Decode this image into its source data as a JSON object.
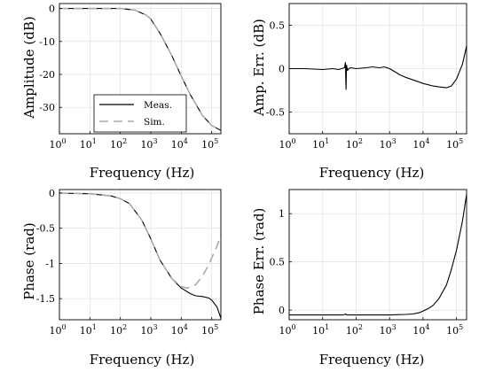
{
  "chart_data": [
    {
      "id": "amp",
      "type": "line",
      "xlabel": "Frequency (Hz)",
      "ylabel": "Amplitude (dB)",
      "xscale": "log",
      "xlim": [
        1,
        200000
      ],
      "ylim": [
        -38,
        1.5
      ],
      "xticks": [
        "10^0",
        "10^1",
        "10^2",
        "10^3",
        "10^4",
        "10^5"
      ],
      "yticks": [
        0,
        -10,
        -20,
        -30
      ],
      "grid": true,
      "legend": {
        "placement": "bottom-left",
        "entries": [
          "Meas.",
          "Sim."
        ]
      },
      "series": [
        {
          "name": "Meas.",
          "style": "solid",
          "color": "#000000",
          "x": [
            1,
            10,
            100,
            300,
            700,
            1000,
            2000,
            3000,
            5000,
            10000,
            20000,
            50000,
            100000,
            200000
          ],
          "y": [
            0,
            0,
            0,
            -0.5,
            -2,
            -3.2,
            -7.5,
            -10.5,
            -14.5,
            -20.5,
            -26.2,
            -32.5,
            -35.5,
            -37
          ]
        },
        {
          "name": "Sim.",
          "style": "dashed",
          "color": "#aaaaaa",
          "x": [
            1,
            10,
            100,
            300,
            700,
            1000,
            2000,
            3000,
            5000,
            10000,
            20000,
            50000,
            100000,
            200000
          ],
          "y": [
            0,
            0,
            0,
            -0.5,
            -2,
            -3.2,
            -7.5,
            -10.5,
            -14.5,
            -20.5,
            -26.2,
            -32.5,
            -35.5,
            -37
          ]
        }
      ]
    },
    {
      "id": "amperr",
      "type": "line",
      "xlabel": "Frequency (Hz)",
      "ylabel": "Amp. Err. (dB)",
      "xscale": "log",
      "xlim": [
        1,
        200000
      ],
      "ylim": [
        -0.75,
        0.75
      ],
      "xticks": [
        "10^0",
        "10^1",
        "10^2",
        "10^3",
        "10^4",
        "10^5"
      ],
      "yticks": [
        0.5,
        0,
        -0.5
      ],
      "grid": true,
      "series": [
        {
          "name": "",
          "style": "solid",
          "color": "#000000",
          "x": [
            1,
            3,
            10,
            20,
            30,
            45,
            48,
            50,
            52,
            55,
            60,
            70,
            100,
            200,
            300,
            500,
            700,
            1000,
            1500,
            2000,
            3000,
            5000,
            10000,
            20000,
            30000,
            50000,
            70000,
            100000,
            150000,
            200000
          ],
          "y": [
            0,
            0,
            -0.01,
            0,
            -0.01,
            0.01,
            0.07,
            -0.24,
            0.04,
            -0.02,
            0,
            0.01,
            0,
            0.01,
            0.02,
            0.01,
            0.02,
            0,
            -0.04,
            -0.07,
            -0.1,
            -0.13,
            -0.17,
            -0.2,
            -0.21,
            -0.22,
            -0.2,
            -0.12,
            0.05,
            0.26
          ]
        }
      ]
    },
    {
      "id": "phase",
      "type": "line",
      "xlabel": "Frequency (Hz)",
      "ylabel": "Phase (rad)",
      "xscale": "log",
      "xlim": [
        1,
        200000
      ],
      "ylim": [
        -1.8,
        0.05
      ],
      "xticks": [
        "10^0",
        "10^1",
        "10^2",
        "10^3",
        "10^4",
        "10^5"
      ],
      "yticks": [
        0,
        -0.5,
        -1,
        -1.5
      ],
      "grid": true,
      "series": [
        {
          "name": "Meas.",
          "style": "solid",
          "color": "#000000",
          "x": [
            1,
            10,
            50,
            100,
            200,
            500,
            1000,
            2000,
            5000,
            10000,
            20000,
            30000,
            50000,
            80000,
            100000,
            150000,
            200000
          ],
          "y": [
            0,
            -0.01,
            -0.04,
            -0.08,
            -0.15,
            -0.38,
            -0.65,
            -0.95,
            -1.22,
            -1.35,
            -1.43,
            -1.46,
            -1.47,
            -1.49,
            -1.52,
            -1.62,
            -1.78
          ]
        },
        {
          "name": "Sim.",
          "style": "dashed",
          "color": "#aaaaaa",
          "x": [
            1,
            10,
            50,
            100,
            200,
            500,
            1000,
            2000,
            5000,
            10000,
            15000,
            20000,
            30000,
            50000,
            80000,
            100000,
            150000,
            200000
          ],
          "y": [
            0,
            -0.01,
            -0.04,
            -0.08,
            -0.15,
            -0.38,
            -0.65,
            -0.95,
            -1.22,
            -1.33,
            -1.35,
            -1.34,
            -1.3,
            -1.18,
            -1.02,
            -0.92,
            -0.75,
            -0.6
          ]
        }
      ]
    },
    {
      "id": "phaseerr",
      "type": "line",
      "xlabel": "Frequency (Hz)",
      "ylabel": "Phase Err. (rad)",
      "xscale": "log",
      "xlim": [
        1,
        200000
      ],
      "ylim": [
        -0.1,
        1.25
      ],
      "xticks": [
        "10^0",
        "10^1",
        "10^2",
        "10^3",
        "10^4",
        "10^5"
      ],
      "yticks": [
        1,
        0.5,
        0
      ],
      "grid": true,
      "series": [
        {
          "name": "",
          "style": "solid",
          "color": "#000000",
          "x": [
            1,
            10,
            40,
            50,
            52,
            55,
            100,
            1000,
            3000,
            5000,
            8000,
            10000,
            15000,
            20000,
            30000,
            50000,
            70000,
            100000,
            150000,
            200000
          ],
          "y": [
            -0.05,
            -0.05,
            -0.05,
            -0.04,
            -0.05,
            -0.05,
            -0.05,
            -0.05,
            -0.045,
            -0.04,
            -0.025,
            -0.01,
            0.02,
            0.05,
            0.12,
            0.26,
            0.42,
            0.62,
            0.92,
            1.2
          ]
        }
      ]
    }
  ]
}
